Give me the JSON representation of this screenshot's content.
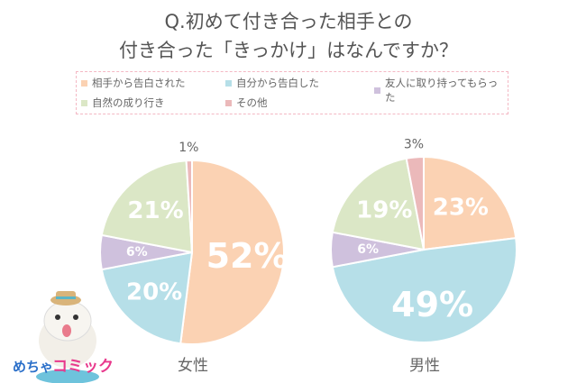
{
  "title": {
    "line1": "Q.初めて付き合った相手との",
    "line2": "付き合った「きっかけ」はなんですか？"
  },
  "legend": [
    {
      "label": "相手から告白された",
      "color": "#fbd2b3"
    },
    {
      "label": "自分から告白した",
      "color": "#b6dfe8"
    },
    {
      "label": "友人に取り持ってもらった",
      "color": "#cfc1dd"
    },
    {
      "label": "自然の成り行き",
      "color": "#dbe7c6"
    },
    {
      "label": "その他",
      "color": "#ebb9ba"
    }
  ],
  "logo": {
    "text1": "めちゃ",
    "text2": "コミック"
  },
  "chart_data": [
    {
      "type": "pie",
      "title": "女性",
      "categories": [
        "相手から告白された",
        "自分から告白した",
        "友人に取り持ってもらった",
        "自然の成り行き",
        "その他"
      ],
      "values": [
        52,
        20,
        6,
        21,
        1
      ],
      "labels": [
        "52%",
        "20%",
        "6%",
        "21%",
        "1%"
      ]
    },
    {
      "type": "pie",
      "title": "男性",
      "categories": [
        "相手から告白された",
        "自分から告白した",
        "友人に取り持ってもらった",
        "自然の成り行き",
        "その他"
      ],
      "values": [
        23,
        49,
        6,
        19,
        3
      ],
      "labels": [
        "23%",
        "49%",
        "6%",
        "19%",
        "3%"
      ]
    }
  ]
}
